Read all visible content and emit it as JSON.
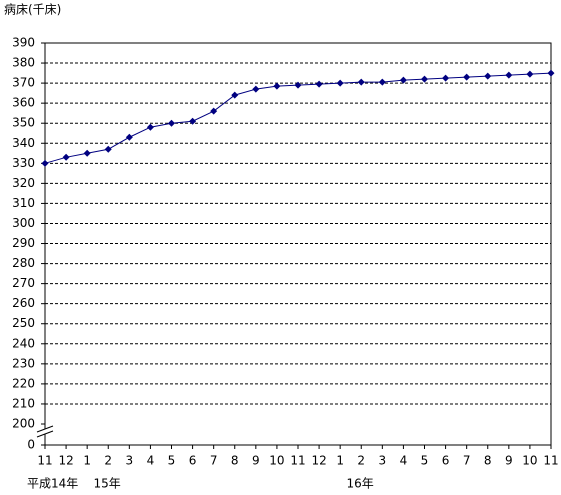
{
  "chart_data": {
    "type": "line",
    "y_label": "病床(千床)",
    "categories": [
      "11",
      "12",
      "1",
      "2",
      "3",
      "4",
      "5",
      "6",
      "7",
      "8",
      "9",
      "10",
      "11",
      "12",
      "1",
      "2",
      "3",
      "4",
      "5",
      "6",
      "7",
      "8",
      "9",
      "10",
      "11"
    ],
    "category_groups": [
      "平成14年",
      null,
      "15年",
      null,
      null,
      null,
      null,
      null,
      null,
      null,
      null,
      null,
      null,
      null,
      "16年",
      null,
      null,
      null,
      null,
      null,
      null,
      null,
      null,
      null,
      null
    ],
    "series": [
      {
        "color": "#000080",
        "values": [
          330,
          333,
          335,
          337,
          343,
          348,
          350,
          351,
          356,
          364,
          367,
          368.5,
          369,
          369.5,
          370,
          370.5,
          370.5,
          371.5,
          372,
          372.5,
          373,
          373.5,
          374,
          374.5,
          375
        ]
      }
    ],
    "ylim": [
      200,
      390
    ],
    "yticks": [
      200,
      210,
      220,
      230,
      240,
      250,
      260,
      270,
      280,
      290,
      300,
      310,
      320,
      330,
      340,
      350,
      360,
      370,
      380,
      390
    ],
    "y_origin_tick": 0,
    "grid": true
  }
}
